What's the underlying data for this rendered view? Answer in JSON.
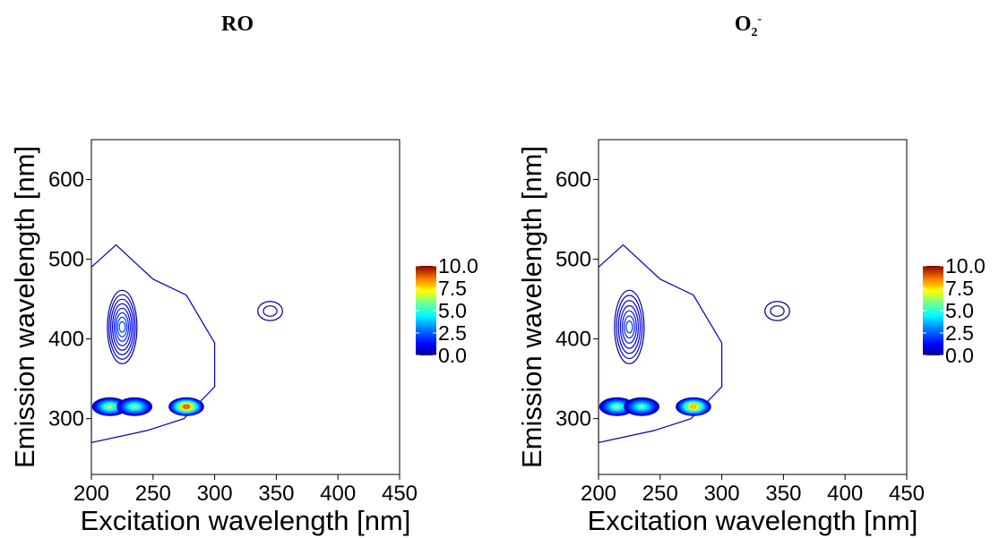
{
  "titles": [
    {
      "main": "RO",
      "sub": "",
      "sup": ""
    },
    {
      "main": "O",
      "sub": "2",
      "sup": "-"
    }
  ],
  "chart_data": [
    {
      "type": "contour",
      "title": "RO",
      "xlabel": "Excitation wavelength [nm]",
      "ylabel": "Emission wavelength [nm]",
      "xlim": [
        200,
        450
      ],
      "ylim": [
        230,
        650
      ],
      "xticks": [
        200,
        250,
        300,
        350,
        400,
        450
      ],
      "yticks": [
        300,
        400,
        500,
        600
      ],
      "colorbar": {
        "range": [
          0,
          10
        ],
        "ticks": [
          "0.0",
          "2.5",
          "5.0",
          "7.5",
          "10.0"
        ]
      },
      "peaks": [
        {
          "ex": 215,
          "em": 315,
          "intensity": 6.5
        },
        {
          "ex": 235,
          "em": 315,
          "intensity": 6.0
        },
        {
          "ex": 277,
          "em": 315,
          "intensity": 9.5
        },
        {
          "ex": 225,
          "em": 415,
          "intensity": 2.5
        },
        {
          "ex": 345,
          "em": 435,
          "intensity": 0.3
        }
      ],
      "grid": false
    },
    {
      "type": "contour",
      "title": "O2-",
      "xlabel": "Excitation wavelength [nm]",
      "ylabel": "Emission wavelength [nm]",
      "xlim": [
        200,
        450
      ],
      "ylim": [
        230,
        650
      ],
      "xticks": [
        200,
        250,
        300,
        350,
        400,
        450
      ],
      "yticks": [
        300,
        400,
        500,
        600
      ],
      "colorbar": {
        "range": [
          0,
          10
        ],
        "ticks": [
          "0.0",
          "2.5",
          "5.0",
          "7.5",
          "10.0"
        ]
      },
      "peaks": [
        {
          "ex": 215,
          "em": 315,
          "intensity": 6.0
        },
        {
          "ex": 235,
          "em": 315,
          "intensity": 5.5
        },
        {
          "ex": 277,
          "em": 315,
          "intensity": 8.5
        },
        {
          "ex": 225,
          "em": 415,
          "intensity": 2.2
        },
        {
          "ex": 345,
          "em": 435,
          "intensity": 0.3
        }
      ],
      "grid": false
    }
  ]
}
